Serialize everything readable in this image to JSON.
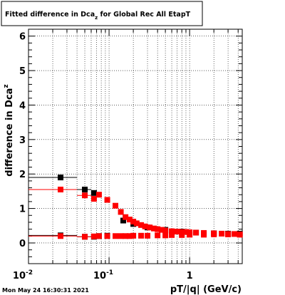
{
  "chart_data": {
    "type": "scatter",
    "title": "Fitted difference in Dca",
    "title_sub": "z",
    "title_suffix": " for Global Rec All EtapT",
    "ylabel": "difference in Dca",
    "ylabel_sub": "z",
    "xlabel": "pT/|q| (GeV/c)",
    "xscale": "log",
    "xlim": [
      0.01,
      4.5
    ],
    "ylim": [
      -0.6,
      6.2
    ],
    "grid": true,
    "legend": "none",
    "x_ticks": [
      {
        "value": 0.01,
        "label": "10",
        "exp": "-2"
      },
      {
        "value": 0.1,
        "label": "10",
        "exp": "-1"
      },
      {
        "value": 1,
        "label": "1",
        "exp": ""
      }
    ],
    "y_ticks": [
      {
        "value": 0,
        "label": "0"
      },
      {
        "value": 1,
        "label": "1"
      },
      {
        "value": 2,
        "label": "2"
      },
      {
        "value": 3,
        "label": "3"
      },
      {
        "value": 4,
        "label": "4"
      },
      {
        "value": 5,
        "label": "5"
      },
      {
        "value": 6,
        "label": "6"
      }
    ],
    "series": [
      {
        "color": "#000000",
        "points": [
          {
            "x": 0.025,
            "y": 1.9,
            "xerr": [
              0.01,
              0.04
            ]
          },
          {
            "x": 0.05,
            "y": 1.55,
            "xerr": [
              0.04,
              0.06
            ]
          },
          {
            "x": 0.065,
            "y": 1.45,
            "xerr": [
              0.06,
              0.07
            ]
          },
          {
            "x": 0.025,
            "y": 0.22,
            "xerr": [
              0.01,
              0.04
            ]
          },
          {
            "x": 0.05,
            "y": 0.18,
            "xerr": [
              0.04,
              0.06
            ]
          },
          {
            "x": 0.065,
            "y": 0.18,
            "xerr": [
              0.06,
              0.07
            ]
          },
          {
            "x": 0.075,
            "y": 0.2
          },
          {
            "x": 0.095,
            "y": 0.21
          },
          {
            "x": 0.15,
            "y": 0.65
          },
          {
            "x": 0.2,
            "y": 0.55
          },
          {
            "x": 0.3,
            "y": 0.45
          },
          {
            "x": 0.5,
            "y": 0.38
          },
          {
            "x": 0.8,
            "y": 0.33
          },
          {
            "x": 1.2,
            "y": 0.3
          },
          {
            "x": 2.0,
            "y": 0.28
          },
          {
            "x": 3.0,
            "y": 0.27
          },
          {
            "x": 4.2,
            "y": 0.27
          }
        ]
      },
      {
        "color": "#ff0000",
        "points": [
          {
            "x": 0.025,
            "y": 1.55,
            "xerr": [
              0.01,
              0.04
            ]
          },
          {
            "x": 0.05,
            "y": 1.38,
            "xerr": [
              0.04,
              0.06
            ]
          },
          {
            "x": 0.065,
            "y": 1.28,
            "xerr": [
              0.06,
              0.07
            ]
          },
          {
            "x": 0.075,
            "y": 1.4
          },
          {
            "x": 0.095,
            "y": 1.25
          },
          {
            "x": 0.12,
            "y": 1.08
          },
          {
            "x": 0.14,
            "y": 0.9
          },
          {
            "x": 0.16,
            "y": 0.75
          },
          {
            "x": 0.18,
            "y": 0.68
          },
          {
            "x": 0.2,
            "y": 0.62
          },
          {
            "x": 0.22,
            "y": 0.57
          },
          {
            "x": 0.25,
            "y": 0.52
          },
          {
            "x": 0.28,
            "y": 0.48
          },
          {
            "x": 0.32,
            "y": 0.45
          },
          {
            "x": 0.36,
            "y": 0.42
          },
          {
            "x": 0.4,
            "y": 0.4
          },
          {
            "x": 0.45,
            "y": 0.38
          },
          {
            "x": 0.5,
            "y": 0.36
          },
          {
            "x": 0.6,
            "y": 0.34
          },
          {
            "x": 0.7,
            "y": 0.33
          },
          {
            "x": 0.8,
            "y": 0.32
          },
          {
            "x": 0.9,
            "y": 0.32
          },
          {
            "x": 1.0,
            "y": 0.31
          },
          {
            "x": 1.2,
            "y": 0.3
          },
          {
            "x": 1.5,
            "y": 0.29
          },
          {
            "x": 2.0,
            "y": 0.28
          },
          {
            "x": 2.5,
            "y": 0.27
          },
          {
            "x": 3.0,
            "y": 0.26
          },
          {
            "x": 3.6,
            "y": 0.26
          },
          {
            "x": 4.2,
            "y": 0.25
          },
          {
            "x": 0.025,
            "y": 0.2,
            "xerr": [
              0.01,
              0.04
            ]
          },
          {
            "x": 0.05,
            "y": 0.18,
            "xerr": [
              0.04,
              0.06
            ]
          },
          {
            "x": 0.065,
            "y": 0.19
          },
          {
            "x": 0.075,
            "y": 0.2
          },
          {
            "x": 0.095,
            "y": 0.2
          },
          {
            "x": 0.12,
            "y": 0.2
          },
          {
            "x": 0.14,
            "y": 0.2
          },
          {
            "x": 0.16,
            "y": 0.2
          },
          {
            "x": 0.18,
            "y": 0.2
          },
          {
            "x": 0.2,
            "y": 0.21
          },
          {
            "x": 0.25,
            "y": 0.21
          },
          {
            "x": 0.3,
            "y": 0.21
          },
          {
            "x": 0.4,
            "y": 0.22
          },
          {
            "x": 0.5,
            "y": 0.22
          },
          {
            "x": 0.6,
            "y": 0.23
          },
          {
            "x": 0.8,
            "y": 0.23
          },
          {
            "x": 1.0,
            "y": 0.24
          },
          {
            "x": 1.5,
            "y": 0.24
          },
          {
            "x": 2.0,
            "y": 0.25
          },
          {
            "x": 3.0,
            "y": 0.25
          },
          {
            "x": 4.2,
            "y": 0.24
          }
        ]
      }
    ]
  },
  "footer": {
    "timestamp": "Mon May 24 16:30:31 2021"
  }
}
